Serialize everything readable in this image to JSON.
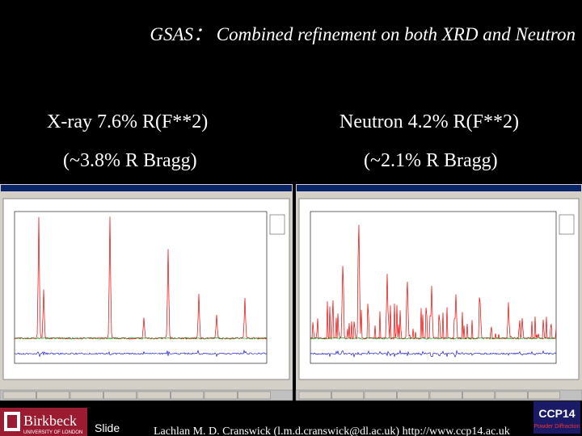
{
  "title": "GSAS： Combined refinement on both XRD and Neutron",
  "columns": [
    {
      "line1": "X-ray 7.6% R(F**2)",
      "line2": "(~3.8% R Bragg)"
    },
    {
      "line1": "Neutron 4.2% R(F**2)",
      "line2": "(~2.1% R Bragg)"
    }
  ],
  "footer": {
    "logo": "Birkbeck",
    "logo_sub": "UNIVERSITY OF LONDON",
    "slide": "Slide",
    "credit": "Lachlan M. D. Cranswick (l.m.d.cranswick@dl.ac.uk) http://www.ccp14.ac.uk",
    "ccp14": "CCP14",
    "ccp14_sub": "Powder Diffraction"
  }
}
